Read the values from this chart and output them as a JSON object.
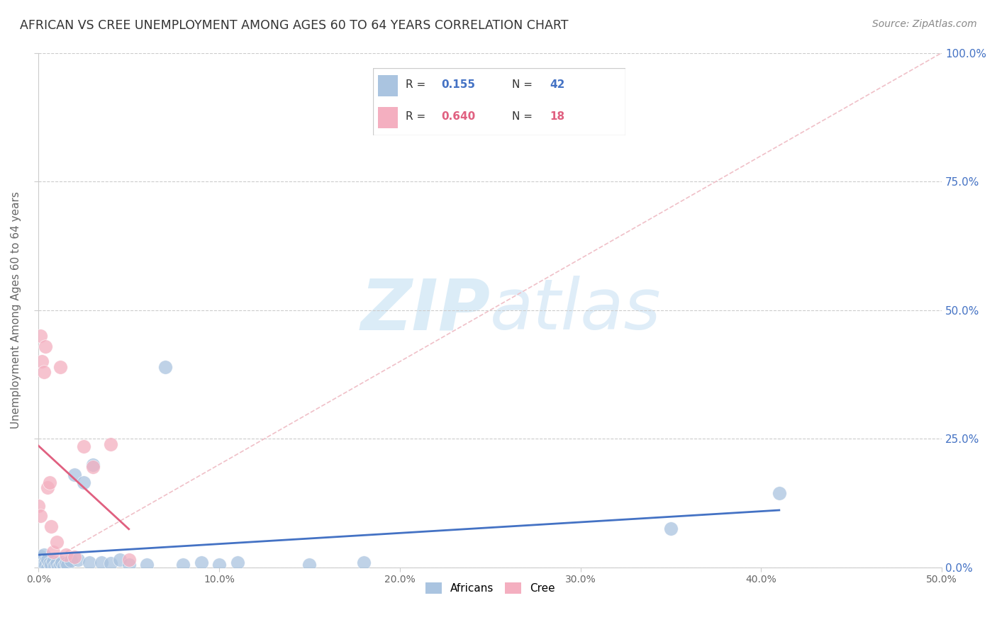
{
  "title": "AFRICAN VS CREE UNEMPLOYMENT AMONG AGES 60 TO 64 YEARS CORRELATION CHART",
  "source": "Source: ZipAtlas.com",
  "ylabel": "Unemployment Among Ages 60 to 64 years",
  "xlim": [
    0.0,
    0.5
  ],
  "ylim": [
    0.0,
    1.0
  ],
  "yticks": [
    0.0,
    0.25,
    0.5,
    0.75,
    1.0
  ],
  "ytick_labels": [
    "0.0%",
    "25.0%",
    "50.0%",
    "75.0%",
    "100.0%"
  ],
  "xticks": [
    0.0,
    0.1,
    0.2,
    0.3,
    0.4,
    0.5
  ],
  "xtick_labels": [
    "0.0%",
    "10.0%",
    "20.0%",
    "30.0%",
    "40.0%",
    "50.0%"
  ],
  "african_R": 0.155,
  "african_N": 42,
  "cree_R": 0.64,
  "cree_N": 18,
  "african_color": "#aac4e0",
  "cree_color": "#f4afc0",
  "african_line_color": "#4472c4",
  "cree_line_color": "#e06080",
  "right_tick_color": "#4472c4",
  "watermark_color": "#cce5f5",
  "african_x": [
    0.0,
    0.001,
    0.001,
    0.002,
    0.002,
    0.003,
    0.003,
    0.004,
    0.004,
    0.005,
    0.005,
    0.006,
    0.007,
    0.008,
    0.009,
    0.01,
    0.011,
    0.012,
    0.013,
    0.014,
    0.015,
    0.016,
    0.018,
    0.02,
    0.022,
    0.025,
    0.028,
    0.03,
    0.035,
    0.04,
    0.045,
    0.05,
    0.06,
    0.07,
    0.08,
    0.09,
    0.1,
    0.11,
    0.15,
    0.18,
    0.35,
    0.41
  ],
  "african_y": [
    0.018,
    0.005,
    0.022,
    0.01,
    0.0,
    0.008,
    0.025,
    0.012,
    0.005,
    0.0,
    0.015,
    0.008,
    0.005,
    0.012,
    0.003,
    0.008,
    0.0,
    0.005,
    0.01,
    0.003,
    0.008,
    0.005,
    0.013,
    0.18,
    0.015,
    0.165,
    0.01,
    0.2,
    0.01,
    0.008,
    0.015,
    0.005,
    0.005,
    0.39,
    0.005,
    0.01,
    0.005,
    0.01,
    0.005,
    0.01,
    0.075,
    0.145
  ],
  "cree_x": [
    0.0,
    0.001,
    0.001,
    0.002,
    0.003,
    0.004,
    0.005,
    0.006,
    0.007,
    0.008,
    0.01,
    0.012,
    0.015,
    0.02,
    0.025,
    0.03,
    0.04,
    0.05
  ],
  "cree_y": [
    0.12,
    0.45,
    0.1,
    0.4,
    0.38,
    0.43,
    0.155,
    0.165,
    0.08,
    0.03,
    0.05,
    0.39,
    0.025,
    0.02,
    0.235,
    0.195,
    0.24,
    0.015
  ]
}
